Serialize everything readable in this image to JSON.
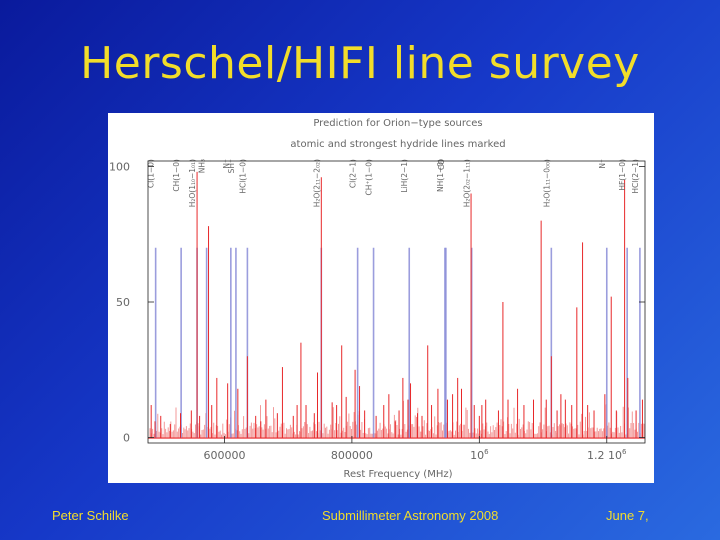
{
  "slide": {
    "title": "Herschel/HIFI line survey",
    "footer_author": "Peter Schilke",
    "footer_event": "Submillimeter Astronomy 2008",
    "footer_date": "June 7,"
  },
  "chart_data": {
    "type": "bar",
    "title": "Prediction for Orion−type sources",
    "subtitle": "atomic and strongest hydride lines marked",
    "xlabel": "Rest Frequency (MHz)",
    "ylabel": "",
    "xlim": [
      480000,
      1260000
    ],
    "ylim": [
      -2,
      102
    ],
    "grid": false,
    "x_tick_labels": [
      {
        "value": 600000,
        "label": "600000"
      },
      {
        "value": 800000,
        "label": "800000"
      },
      {
        "value": 1000000,
        "label": "10",
        "exp": "6"
      },
      {
        "value": 1200000,
        "label": "1.2 10",
        "exp": "6"
      }
    ],
    "y_ticks": [
      0,
      50,
      100
    ],
    "marked_lines": [
      {
        "x": 492000,
        "label": "CI(1−0)"
      },
      {
        "x": 532000,
        "label": "CH(1−0)"
      },
      {
        "x": 557000,
        "label": "H₂O(1₁₀−1₀₁)"
      },
      {
        "x": 572000,
        "label": "NH₃"
      },
      {
        "x": 610000,
        "label": "N⁺"
      },
      {
        "x": 618000,
        "label": "SH⁺"
      },
      {
        "x": 636000,
        "label": "HCl(1−0)"
      },
      {
        "x": 752000,
        "label": "H₂O(2₁₁−2₀₂)"
      },
      {
        "x": 809000,
        "label": "CI(2−1)"
      },
      {
        "x": 834000,
        "label": "CH⁺(1−0)"
      },
      {
        "x": 890000,
        "label": "LiH(2−1)"
      },
      {
        "x": 946000,
        "label": "NH(1−0)"
      },
      {
        "x": 947500,
        "label": "CO"
      },
      {
        "x": 988000,
        "label": "H₂O(2₀₂−1₁₁)"
      },
      {
        "x": 1113000,
        "label": "H₂O(1₁₁−0₀₀)"
      },
      {
        "x": 1200000,
        "label": "N⁺"
      },
      {
        "x": 1232000,
        "label": "HF(1−0)"
      },
      {
        "x": 1252000,
        "label": "HCl(2−1)"
      }
    ],
    "peaks": [
      [
        485000,
        12
      ],
      [
        491000,
        6
      ],
      [
        500000,
        8
      ],
      [
        515000,
        5
      ],
      [
        531000,
        9
      ],
      [
        548000,
        10
      ],
      [
        557000,
        98
      ],
      [
        561000,
        8
      ],
      [
        575000,
        78
      ],
      [
        580000,
        12
      ],
      [
        588000,
        22
      ],
      [
        605000,
        20
      ],
      [
        621000,
        18
      ],
      [
        636000,
        30
      ],
      [
        649000,
        8
      ],
      [
        657000,
        6
      ],
      [
        665000,
        14
      ],
      [
        683000,
        9
      ],
      [
        691000,
        26
      ],
      [
        708000,
        8
      ],
      [
        714000,
        12
      ],
      [
        720000,
        35
      ],
      [
        728000,
        12
      ],
      [
        741000,
        9
      ],
      [
        746000,
        24
      ],
      [
        752000,
        96
      ],
      [
        769000,
        13
      ],
      [
        776000,
        12
      ],
      [
        784000,
        34
      ],
      [
        791000,
        15
      ],
      [
        805000,
        25
      ],
      [
        812000,
        19
      ],
      [
        820000,
        10
      ],
      [
        838000,
        8
      ],
      [
        850000,
        12
      ],
      [
        858000,
        16
      ],
      [
        868000,
        6
      ],
      [
        874000,
        10
      ],
      [
        880000,
        22
      ],
      [
        888000,
        14
      ],
      [
        892000,
        20
      ],
      [
        903000,
        9
      ],
      [
        910000,
        8
      ],
      [
        919000,
        34
      ],
      [
        925000,
        12
      ],
      [
        935000,
        18
      ],
      [
        950000,
        14
      ],
      [
        958000,
        16
      ],
      [
        966000,
        22
      ],
      [
        972000,
        18
      ],
      [
        987000,
        90
      ],
      [
        992000,
        12
      ],
      [
        1000000,
        8
      ],
      [
        1004000,
        12
      ],
      [
        1010000,
        14
      ],
      [
        1030000,
        10
      ],
      [
        1037000,
        50
      ],
      [
        1045000,
        14
      ],
      [
        1060000,
        18
      ],
      [
        1070000,
        12
      ],
      [
        1085000,
        14
      ],
      [
        1097000,
        80
      ],
      [
        1105000,
        14
      ],
      [
        1113000,
        30
      ],
      [
        1122000,
        10
      ],
      [
        1128000,
        16
      ],
      [
        1135000,
        14
      ],
      [
        1145000,
        12
      ],
      [
        1153000,
        48
      ],
      [
        1162000,
        72
      ],
      [
        1170000,
        12
      ],
      [
        1180000,
        10
      ],
      [
        1197000,
        16
      ],
      [
        1207000,
        52
      ],
      [
        1215000,
        10
      ],
      [
        1228000,
        95
      ],
      [
        1233000,
        22
      ],
      [
        1246000,
        10
      ],
      [
        1256000,
        14
      ]
    ],
    "colors": {
      "spectrum": "#e8282a",
      "spectrum_fill": "#f39a9a",
      "marked_line": "#8a8cd8",
      "axis": "#222222",
      "label_text": "#666666"
    }
  }
}
